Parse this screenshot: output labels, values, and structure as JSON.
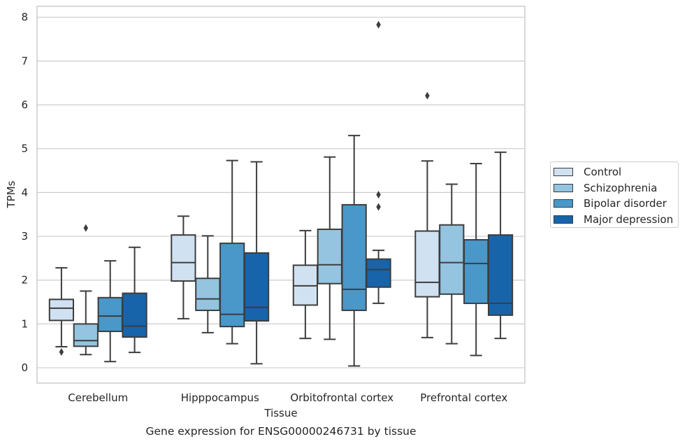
{
  "caption": "Gene expression for ENSG00000246731 by tissue",
  "chart_data": {
    "type": "box",
    "xlabel": "Tissue",
    "ylabel": "TPMs",
    "ylim": [
      -0.35,
      8.25
    ],
    "yticks": [
      0,
      1,
      2,
      3,
      4,
      5,
      6,
      7,
      8
    ],
    "grid": "horizontal",
    "legend_position": "right",
    "categories": [
      "Cerebellum",
      "Hipppocampus",
      "Orbitofrontal cortex",
      "Prefrontal cortex"
    ],
    "series": [
      {
        "name": "Control",
        "color": "#d0e1f2",
        "boxes": [
          {
            "whislo": 0.48,
            "q1": 1.08,
            "med": 1.36,
            "q3": 1.56,
            "whishi": 2.28,
            "fliers": [
              0.36
            ]
          },
          {
            "whislo": 1.12,
            "q1": 1.98,
            "med": 2.4,
            "q3": 3.03,
            "whishi": 3.46,
            "fliers": []
          },
          {
            "whislo": 0.67,
            "q1": 1.43,
            "med": 1.87,
            "q3": 2.34,
            "whishi": 3.13,
            "fliers": []
          },
          {
            "whislo": 0.69,
            "q1": 1.62,
            "med": 1.95,
            "q3": 3.12,
            "whishi": 4.72,
            "fliers": [
              6.21
            ]
          }
        ]
      },
      {
        "name": "Schizophrenia",
        "color": "#94c4df",
        "boxes": [
          {
            "whislo": 0.3,
            "q1": 0.49,
            "med": 0.62,
            "q3": 1.0,
            "whishi": 1.75,
            "fliers": [
              3.19
            ]
          },
          {
            "whislo": 0.8,
            "q1": 1.31,
            "med": 1.57,
            "q3": 2.04,
            "whishi": 3.01,
            "fliers": []
          },
          {
            "whislo": 0.65,
            "q1": 1.92,
            "med": 2.35,
            "q3": 3.16,
            "whishi": 4.81,
            "fliers": []
          },
          {
            "whislo": 0.55,
            "q1": 1.68,
            "med": 2.4,
            "q3": 3.26,
            "whishi": 4.19,
            "fliers": []
          }
        ]
      },
      {
        "name": "Bipolar disorder",
        "color": "#4a98c9",
        "boxes": [
          {
            "whislo": 0.14,
            "q1": 0.83,
            "med": 1.18,
            "q3": 1.6,
            "whishi": 2.44,
            "fliers": []
          },
          {
            "whislo": 0.55,
            "q1": 0.94,
            "med": 1.22,
            "q3": 2.84,
            "whishi": 4.73,
            "fliers": []
          },
          {
            "whislo": 0.04,
            "q1": 1.31,
            "med": 1.79,
            "q3": 3.72,
            "whishi": 5.3,
            "fliers": []
          },
          {
            "whislo": 0.28,
            "q1": 1.47,
            "med": 2.38,
            "q3": 2.92,
            "whishi": 4.66,
            "fliers": []
          }
        ]
      },
      {
        "name": "Major depression",
        "color": "#1764ab",
        "boxes": [
          {
            "whislo": 0.35,
            "q1": 0.7,
            "med": 0.95,
            "q3": 1.7,
            "whishi": 2.75,
            "fliers": []
          },
          {
            "whislo": 0.09,
            "q1": 1.07,
            "med": 1.38,
            "q3": 2.62,
            "whishi": 4.7,
            "fliers": []
          },
          {
            "whislo": 1.47,
            "q1": 1.84,
            "med": 2.24,
            "q3": 2.48,
            "whishi": 2.68,
            "fliers": [
              3.95,
              3.67,
              7.83
            ]
          },
          {
            "whislo": 0.67,
            "q1": 1.2,
            "med": 1.47,
            "q3": 3.03,
            "whishi": 4.92,
            "fliers": []
          }
        ]
      }
    ]
  }
}
